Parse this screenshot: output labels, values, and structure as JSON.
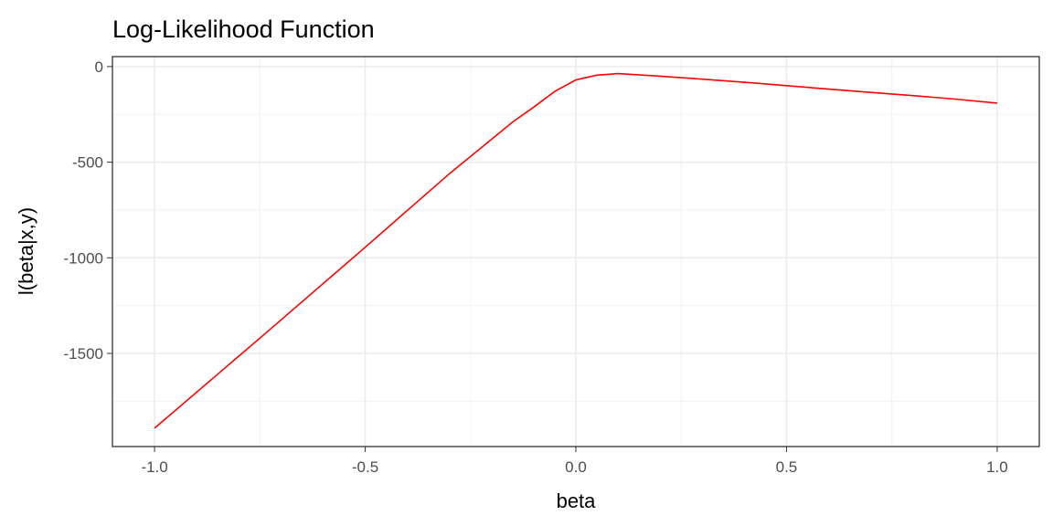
{
  "chart_data": {
    "type": "line",
    "title": "Log-Likelihood Function",
    "xlabel": "beta",
    "ylabel": "l(beta|x,y)",
    "xlim": [
      -1.1,
      1.1
    ],
    "ylim": [
      -1987,
      52
    ],
    "xticks": [
      -1.0,
      -0.5,
      0.0,
      0.5,
      1.0
    ],
    "xtick_labels": [
      "-1.0",
      "-0.5",
      "0.0",
      "0.5",
      "1.0"
    ],
    "yticks": [
      0,
      -500,
      -1000,
      -1500
    ],
    "ytick_labels": [
      "0",
      "-500",
      "-1000",
      "-1500"
    ],
    "grid": true,
    "line_color": "#ff0000",
    "series": [
      {
        "x": [
          -1,
          -0.75,
          -0.5,
          -0.3,
          -0.2,
          -0.15,
          -0.1,
          -0.05,
          0,
          0.05,
          0.1,
          0.2,
          0.3,
          0.4,
          0.5,
          0.6,
          0.7,
          0.8,
          0.9,
          1
        ],
        "y": [
          -1891,
          -1420,
          -945,
          -560,
          -380,
          -290,
          -212,
          -130,
          -70,
          -45,
          -37,
          -50,
          -66,
          -82,
          -100,
          -118,
          -135,
          -152,
          -170,
          -191
        ]
      }
    ]
  }
}
